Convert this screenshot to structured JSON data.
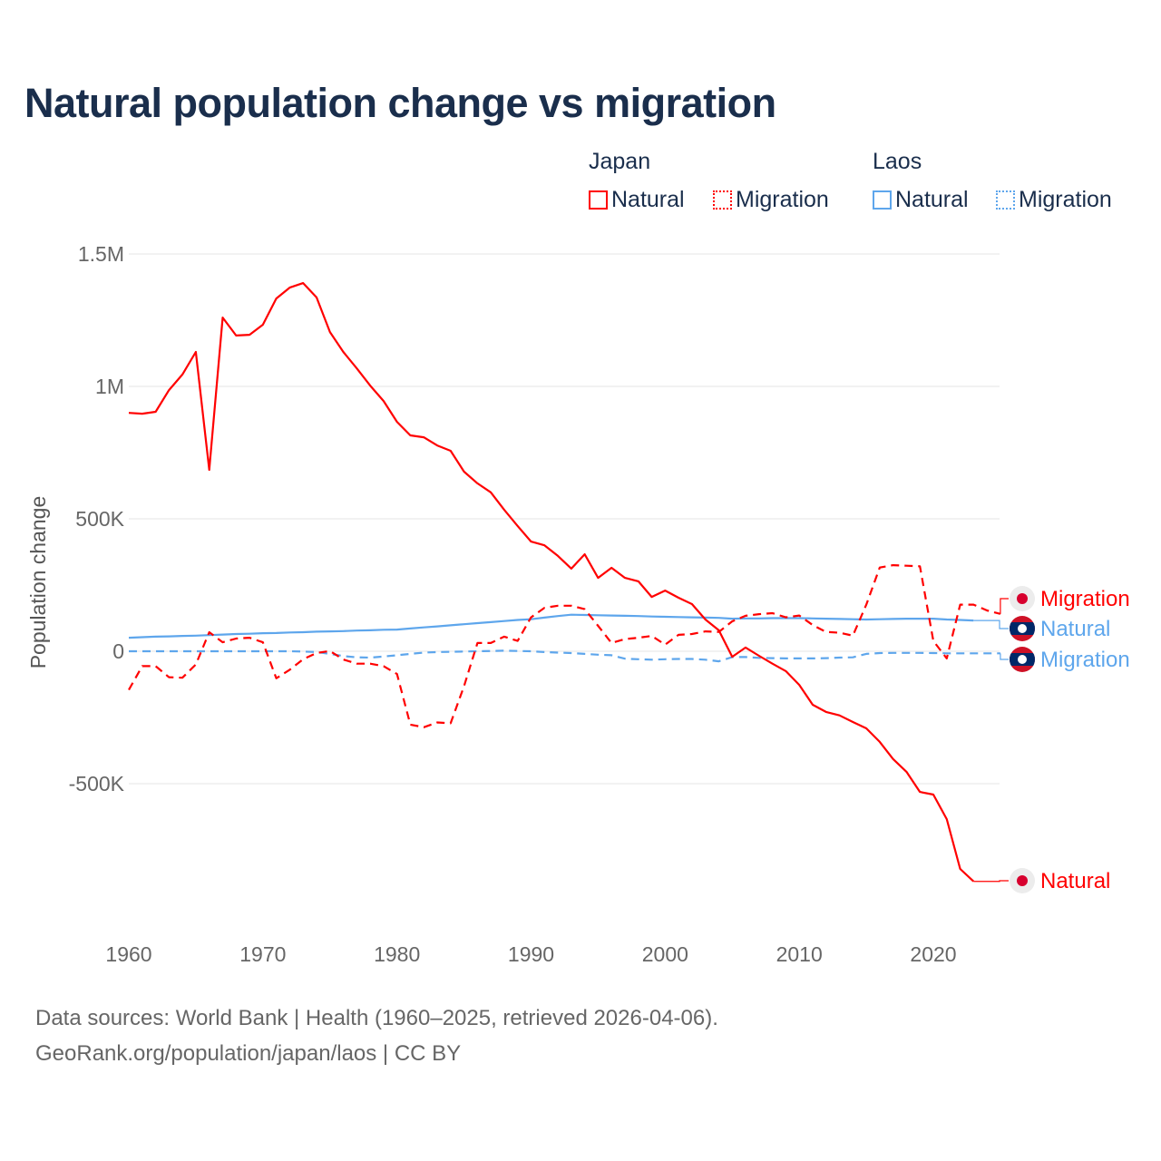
{
  "title": "Natural population change vs migration",
  "legend": {
    "groups": [
      {
        "name": "Japan",
        "items": [
          {
            "label": "Natural",
            "style": "solid"
          },
          {
            "label": "Migration",
            "style": "dotted"
          }
        ],
        "color": "#ff0000"
      },
      {
        "name": "Laos",
        "items": [
          {
            "label": "Natural",
            "style": "solid"
          },
          {
            "label": "Migration",
            "style": "dotted"
          }
        ],
        "color": "#5ea6ec"
      }
    ]
  },
  "source_lines": [
    "Data sources: World Bank | Health (1960–2025, retrieved 2026-04-06).",
    "GeoRank.org/population/japan/laos | CC BY"
  ],
  "chart_data": {
    "type": "line",
    "title": "Natural population change vs migration",
    "xlabel": "",
    "ylabel": "Population change",
    "xlim": [
      1960,
      2025
    ],
    "ylim": [
      -1000000,
      1500000
    ],
    "x_ticks": [
      1960,
      1970,
      1980,
      1990,
      2000,
      2010,
      2020
    ],
    "x_tick_labels": [
      "1960",
      "1970",
      "1980",
      "1990",
      "2000",
      "2010",
      "2020"
    ],
    "y_ticks": [
      1500000,
      1000000,
      500000,
      0,
      -500000
    ],
    "y_tick_labels": [
      "1.5M",
      "1M",
      "500K",
      "0",
      "-500K"
    ],
    "grid": true,
    "legend_position": "top-right",
    "units": "thousands",
    "series": [
      {
        "name": "Japan Natural",
        "label": "Natural",
        "country": "Japan",
        "color": "#ff0000",
        "dash": "solid",
        "start_year": 1960,
        "values": [
          900,
          897,
          904,
          986,
          1045,
          1130,
          685,
          1260,
          1192,
          1195,
          1233,
          1332,
          1373,
          1390,
          1336,
          1205,
          1130,
          1068,
          1003,
          945,
          866,
          815,
          808,
          777,
          757,
          678,
          634,
          600,
          534,
          473,
          414,
          400,
          360,
          312,
          366,
          277,
          315,
          277,
          264,
          205,
          229,
          202,
          178,
          120,
          79,
          -21,
          14,
          -17,
          -47,
          -75,
          -127,
          -202,
          -229,
          -242,
          -267,
          -291,
          -342,
          -407,
          -455,
          -531,
          -541,
          -634,
          -822,
          -869
        ]
      },
      {
        "name": "Japan Migration",
        "label": "Migration",
        "country": "Japan",
        "color": "#ff0000",
        "dash": "dashed",
        "start_year": 1960,
        "values": [
          -146,
          -56,
          -56,
          -98,
          -100,
          -50,
          72,
          34,
          48,
          51,
          34,
          -102,
          -70,
          -30,
          -7,
          1,
          -31,
          -47,
          -47,
          -56,
          -86,
          -277,
          -287,
          -269,
          -272,
          -132,
          31,
          31,
          55,
          39,
          128,
          164,
          172,
          172,
          159,
          96,
          31,
          46,
          51,
          58,
          25,
          62,
          65,
          75,
          73,
          113,
          134,
          140,
          144,
          128,
          135,
          99,
          73,
          70,
          59,
          176,
          316,
          325,
          323,
          321,
          39,
          -27,
          176,
          176,
          154,
          141
        ]
      },
      {
        "name": "Laos Natural",
        "label": "Natural",
        "country": "Laos",
        "color": "#5ea6ec",
        "dash": "solid",
        "start_year": 1960,
        "values": [
          51,
          53,
          55,
          56,
          58,
          59,
          61,
          63,
          65,
          66,
          68,
          69,
          71,
          72,
          74,
          75,
          76,
          78,
          79,
          81,
          82,
          86,
          90,
          94,
          98,
          102,
          106,
          110,
          114,
          118,
          121,
          127,
          133,
          138,
          137,
          136,
          135,
          134,
          133,
          131,
          130,
          129,
          128,
          127,
          126,
          123,
          124,
          124,
          125,
          125,
          125,
          124,
          123,
          122,
          121,
          120,
          121,
          122,
          123,
          123,
          123,
          120,
          118,
          116
        ]
      },
      {
        "name": "Laos Migration",
        "label": "Migration",
        "country": "Laos",
        "color": "#5ea6ec",
        "dash": "dashed",
        "start_year": 1960,
        "values": [
          0,
          0,
          0,
          0,
          0,
          0,
          0,
          0,
          0,
          0,
          0,
          0,
          0,
          -1,
          -3,
          -10,
          -18,
          -23,
          -24,
          -20,
          -15,
          -10,
          -5,
          -3,
          -2,
          -1,
          0,
          1,
          2,
          1,
          0,
          -3,
          -5,
          -7,
          -10,
          -13,
          -15,
          -28,
          -30,
          -32,
          -30,
          -29,
          -29,
          -32,
          -38,
          -22,
          -22,
          -25,
          -26,
          -27,
          -27,
          -27,
          -26,
          -24,
          -23,
          -10,
          -7,
          -6,
          -6,
          -6,
          -7,
          -8,
          -8,
          -8,
          -8,
          -8
        ]
      }
    ],
    "end_labels": [
      {
        "series": "Japan Migration",
        "text": "Migration",
        "marker": "japan-flag"
      },
      {
        "series": "Laos Natural",
        "text": "Natural",
        "marker": "laos-flag"
      },
      {
        "series": "Laos Migration",
        "text": "Migration",
        "marker": "laos-flag"
      },
      {
        "series": "Japan Natural",
        "text": "Natural",
        "marker": "japan-flag"
      }
    ]
  }
}
